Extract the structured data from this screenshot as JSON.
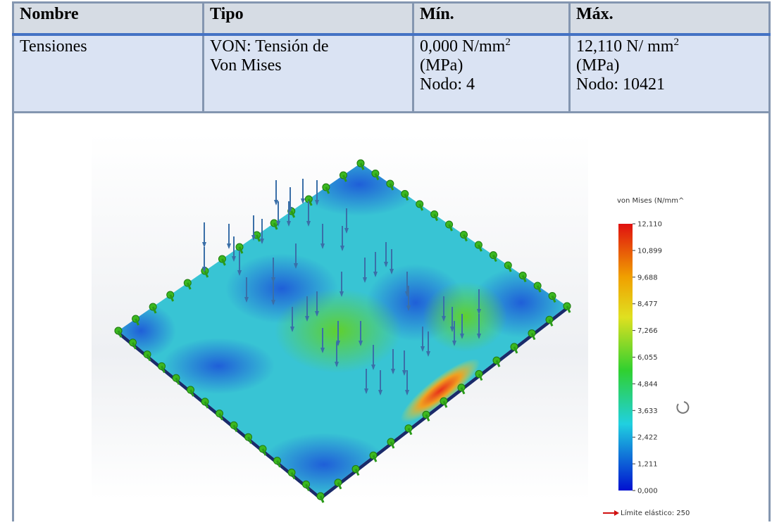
{
  "table": {
    "header": [
      "Nombre",
      "Tipo",
      "Mín.",
      "Máx."
    ],
    "row": {
      "name": "Tensiones",
      "type_lines": [
        "VON: Tensión de",
        "Von Mises"
      ],
      "min": {
        "value": "0,000 N/mm",
        "sup": "2",
        "unit": "(MPa)",
        "node": "Nodo: 4"
      },
      "max": {
        "value": "12,110 N/ mm",
        "sup": "2",
        "unit": "(MPa)",
        "node": "Nodo: 10421"
      }
    }
  },
  "legend": {
    "title": "von Mises (N/mm^",
    "ticks": [
      "12,110",
      "10,899",
      "9,688",
      "8,477",
      "7,266",
      "6,055",
      "4,844",
      "3,633",
      "2,422",
      "1,211",
      "0,000"
    ],
    "yield": "Límite elástico: 250"
  }
}
